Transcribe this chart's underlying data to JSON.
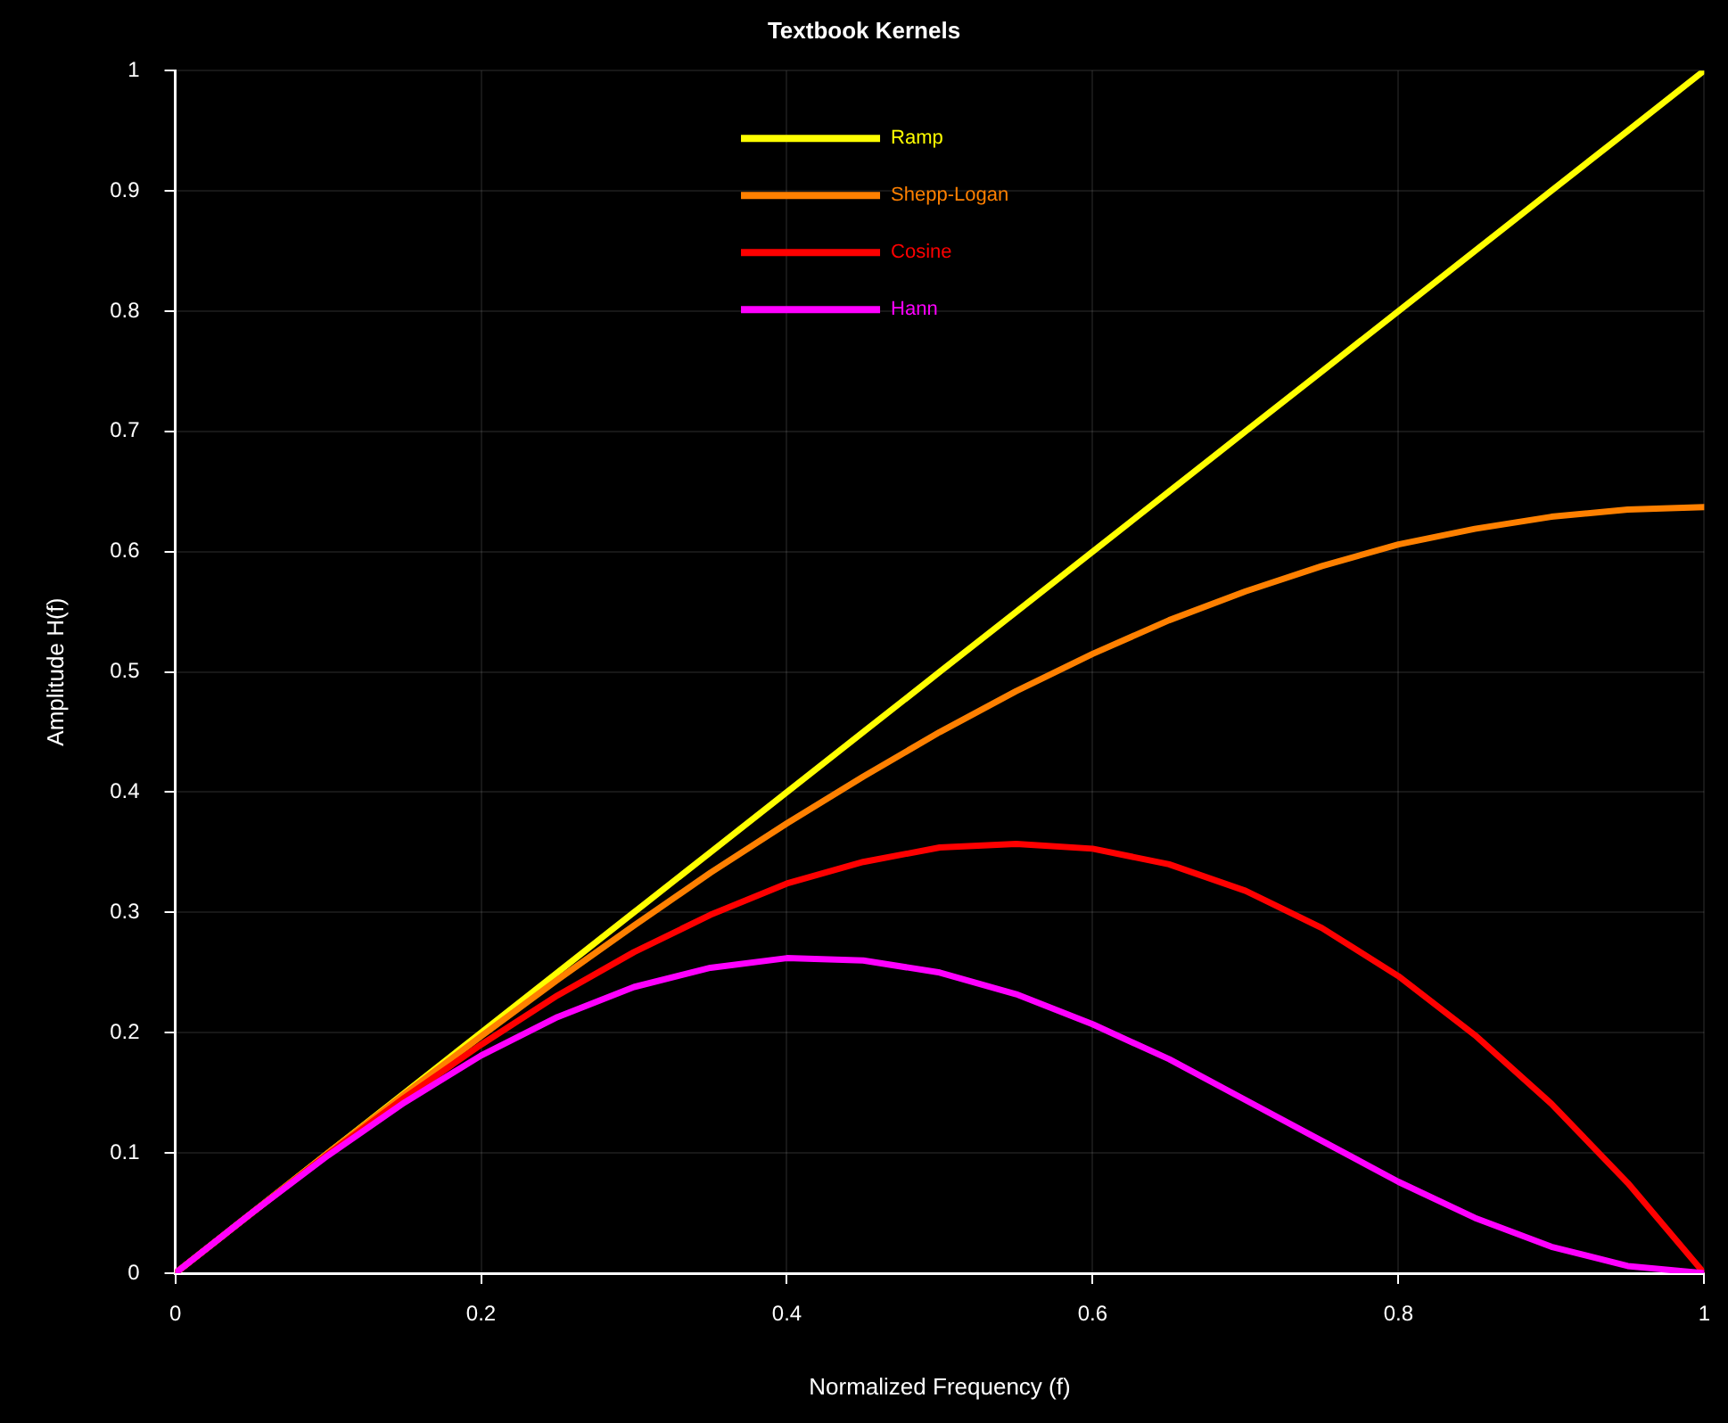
{
  "chart_data": {
    "type": "line",
    "title": "Textbook Kernels",
    "xlabel": "Normalized Frequency (f)",
    "ylabel": "Amplitude H(f)",
    "x": [
      0,
      0.05,
      0.1,
      0.15,
      0.2,
      0.25,
      0.3,
      0.35,
      0.4,
      0.45,
      0.5,
      0.55,
      0.6,
      0.65,
      0.7,
      0.75,
      0.8,
      0.85,
      0.9,
      0.95,
      1
    ],
    "series": [
      {
        "name": "Ramp",
        "color": "#ffff00",
        "values": [
          0,
          0.05,
          0.1,
          0.15,
          0.2,
          0.25,
          0.3,
          0.35,
          0.4,
          0.45,
          0.5,
          0.55,
          0.6,
          0.65,
          0.7,
          0.75,
          0.8,
          0.85,
          0.9,
          0.95,
          1
        ]
      },
      {
        "name": "Shepp-Logan",
        "color": "#ff8000",
        "values": [
          0,
          0.05,
          0.1,
          0.149,
          0.197,
          0.244,
          0.289,
          0.333,
          0.374,
          0.413,
          0.45,
          0.484,
          0.515,
          0.543,
          0.567,
          0.588,
          0.606,
          0.619,
          0.629,
          0.635,
          0.637
        ]
      },
      {
        "name": "Cosine",
        "color": "#ff0000",
        "values": [
          0,
          0.05,
          0.099,
          0.146,
          0.19,
          0.231,
          0.267,
          0.298,
          0.324,
          0.342,
          0.354,
          0.357,
          0.353,
          0.34,
          0.318,
          0.287,
          0.247,
          0.198,
          0.141,
          0.075,
          0
        ]
      },
      {
        "name": "Hann",
        "color": "#ff00ff",
        "values": [
          0,
          0.05,
          0.098,
          0.142,
          0.181,
          0.213,
          0.238,
          0.254,
          0.262,
          0.26,
          0.25,
          0.232,
          0.207,
          0.178,
          0.144,
          0.11,
          0.076,
          0.046,
          0.022,
          0.006,
          0
        ]
      }
    ],
    "xlim": [
      0,
      1
    ],
    "xticks": [
      0,
      0.2,
      0.4,
      0.6,
      0.8,
      1
    ],
    "ylim": [
      0,
      1
    ],
    "yticks": [
      0,
      0.1,
      0.2,
      0.3,
      0.4,
      0.5,
      0.6,
      0.7,
      0.8,
      0.9,
      1
    ],
    "grid": true,
    "legend": "top",
    "marker": "none",
    "line_style": "solid"
  }
}
